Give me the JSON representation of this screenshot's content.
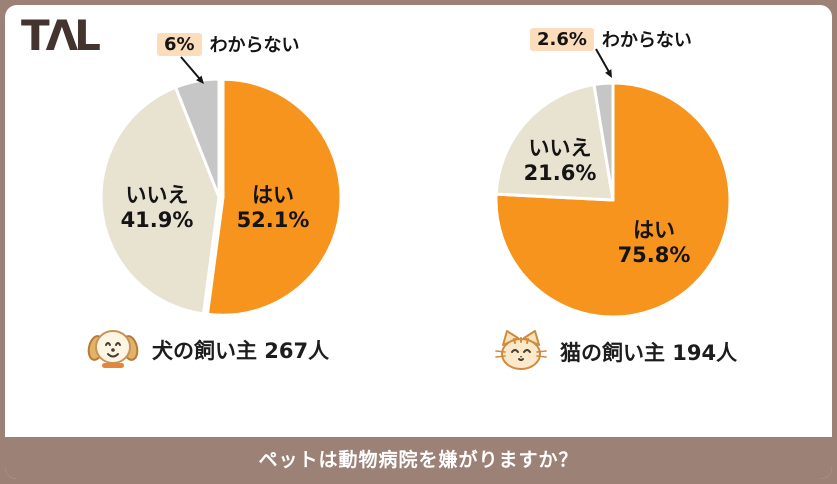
{
  "logo": {
    "text": "TΛL"
  },
  "question_bar": {
    "text": "ペットは動物病院を嫌がりますか？",
    "bg": "#9C8177"
  },
  "colors": {
    "orange": "#F7941E",
    "beige": "#E8E2D1",
    "gray": "#C6C6C6",
    "chip": "#FBDCBB",
    "bar": "#9C8177",
    "logo": "#443430"
  },
  "pie_labels": {
    "dog_yes": {
      "name": "はい",
      "pct": "52.1%"
    },
    "dog_no": {
      "name": "いいえ",
      "pct": "41.9%"
    },
    "dog_dk": {
      "pct": "6%",
      "name": "わからない"
    },
    "cat_yes": {
      "name": "はい",
      "pct": "75.8%"
    },
    "cat_no": {
      "name": "いいえ",
      "pct": "21.6%"
    },
    "cat_dk": {
      "pct": "2.6%",
      "name": "わからない"
    }
  },
  "chart_data": [
    {
      "type": "pie",
      "title": "犬の飼い主 267人",
      "labels": [
        "はい",
        "いいえ",
        "わからない"
      ],
      "values": [
        52.1,
        41.9,
        6
      ],
      "colors": [
        "#F7941E",
        "#E8E2D1",
        "#C6C6C6"
      ],
      "start_angle_deg": 0,
      "direction": "clockwise",
      "respondents": 267
    },
    {
      "type": "pie",
      "title": "猫の飼い主 194人",
      "labels": [
        "はい",
        "いいえ",
        "わからない"
      ],
      "values": [
        75.8,
        21.6,
        2.6
      ],
      "colors": [
        "#F7941E",
        "#E8E2D1",
        "#C6C6C6"
      ],
      "start_angle_deg": 0,
      "direction": "clockwise",
      "respondents": 194
    }
  ]
}
